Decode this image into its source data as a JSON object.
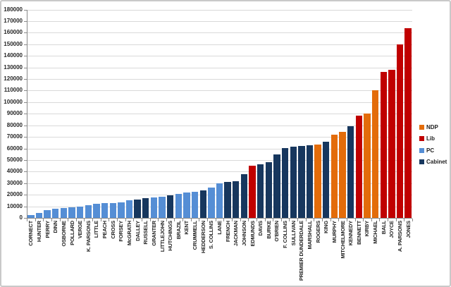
{
  "chart_data": {
    "type": "bar",
    "title": "",
    "xlabel": "",
    "ylabel": "",
    "y_axis": {
      "min": 0,
      "max": 180000,
      "step": 10000,
      "grid": true
    },
    "legend": {
      "position": "right",
      "entries": [
        {
          "label": "NDP",
          "color": "#E36C0A"
        },
        {
          "label": "Lib",
          "color": "#C00000"
        },
        {
          "label": "PC",
          "color": "#558ED5"
        },
        {
          "label": "Cabinet",
          "color": "#17375E"
        }
      ]
    },
    "series_name": "",
    "categories": [
      "CORNECT",
      "HUNTER",
      "PERRY",
      "DINN",
      "OSBORNE",
      "POLLARD",
      "VERGE",
      "K. PARSONS",
      "LITTLE",
      "PEACH",
      "CROSS",
      "FORSEY",
      "McGRATH",
      "DALLEY",
      "RUSSELL",
      "GRANTER",
      "LITTLEJOHN",
      "HUTCHINGS",
      "BRAZIL",
      "KENT",
      "CRUMMELL",
      "HEDDERSON",
      "S. COLLINS",
      "LANE",
      "FRENCH",
      "JACKMAN",
      "JOHNSON",
      "EDMUNDS",
      "DAVIS",
      "BURKE",
      "O'BRIEN",
      "F. COLLINS",
      "SULLIVAN",
      "PREMIER DUNDERDALE",
      "MARSHALL",
      "ROGERS",
      "KING",
      "MURPHY",
      "MITCHELMORE",
      "KENNEDY",
      "BENNETT",
      "KIRBY",
      "MICHAEL",
      "BALL",
      "JOYCE",
      "A. PARSONS",
      "JONES"
    ],
    "values": [
      2500,
      4000,
      6500,
      8000,
      8500,
      9000,
      10000,
      11000,
      12000,
      12500,
      13000,
      13500,
      15500,
      16000,
      17000,
      17500,
      18500,
      19500,
      20500,
      22000,
      22500,
      23500,
      26000,
      30000,
      31000,
      31500,
      38000,
      45000,
      46000,
      48000,
      55000,
      60500,
      61500,
      62000,
      62500,
      63500,
      66000,
      72000,
      74500,
      79000,
      88500,
      90000,
      110500,
      126000,
      128000,
      150000,
      164000
    ],
    "groups": [
      "PC",
      "PC",
      "PC",
      "PC",
      "PC",
      "PC",
      "PC",
      "PC",
      "PC",
      "PC",
      "PC",
      "PC",
      "PC",
      "Cabinet",
      "Cabinet",
      "PC",
      "PC",
      "Cabinet",
      "PC",
      "PC",
      "PC",
      "Cabinet",
      "PC",
      "PC",
      "Cabinet",
      "Cabinet",
      "Cabinet",
      "Lib",
      "Cabinet",
      "Cabinet",
      "Cabinet",
      "Cabinet",
      "Cabinet",
      "Cabinet",
      "Cabinet",
      "NDP",
      "Cabinet",
      "NDP",
      "NDP",
      "Cabinet",
      "Lib",
      "NDP",
      "NDP",
      "Lib",
      "Lib",
      "Lib",
      "Lib"
    ],
    "palette": {
      "NDP": "#E36C0A",
      "Lib": "#C00000",
      "PC": "#558ED5",
      "Cabinet": "#17375E"
    },
    "colors": {
      "gridline": "#d9d9d9",
      "axis": "#898989",
      "tick_label": "#262626",
      "background": "#ffffff"
    }
  }
}
